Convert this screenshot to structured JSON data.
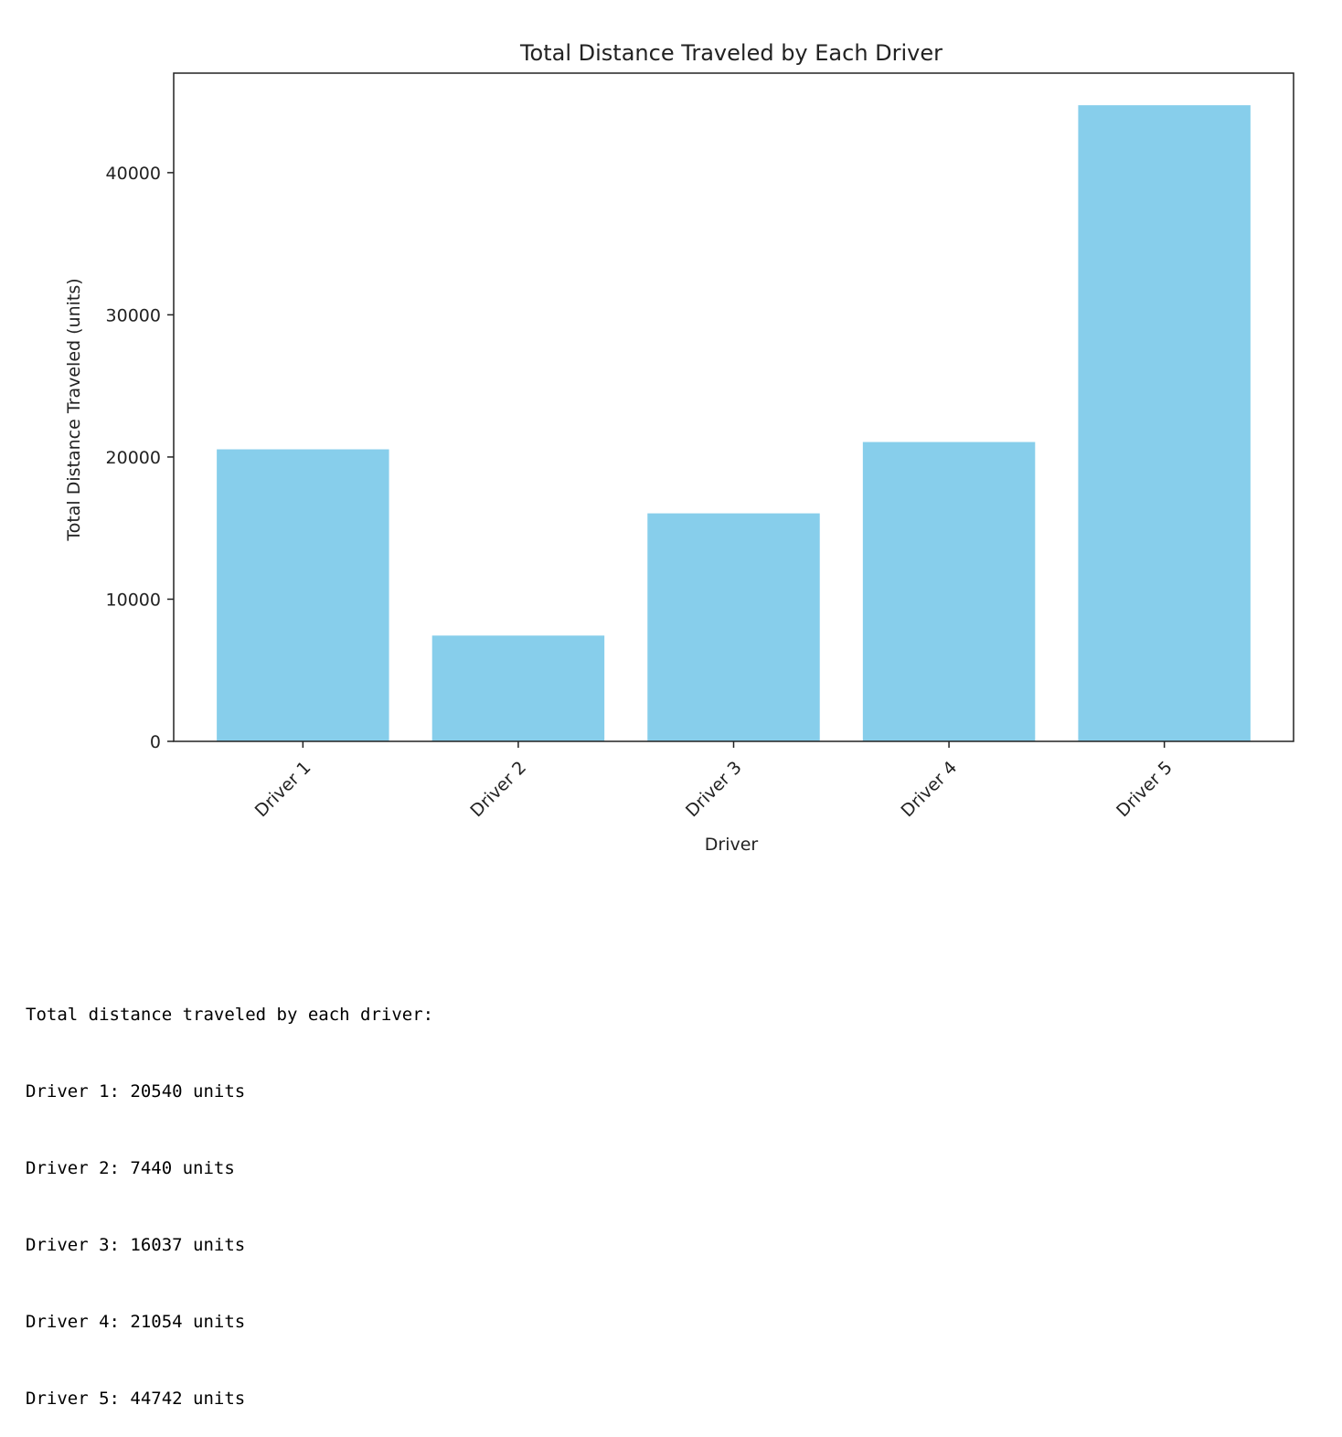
{
  "chart_data": {
    "type": "bar",
    "title": "Total Distance Traveled by Each Driver",
    "xlabel": "Driver",
    "ylabel": "Total Distance Traveled (units)",
    "categories": [
      "Driver 1",
      "Driver 2",
      "Driver 3",
      "Driver 4",
      "Driver 5"
    ],
    "values": [
      20540,
      7440,
      16037,
      21054,
      44742
    ],
    "ylim": [
      0,
      47000
    ],
    "yticks": [
      0,
      10000,
      20000,
      30000,
      40000
    ],
    "ytick_labels": [
      "0",
      "10000",
      "20000",
      "30000",
      "40000"
    ],
    "xtick_rotation": 45,
    "bar_color": "#87ceeb",
    "grid": false,
    "legend": "none"
  },
  "output": {
    "header": "Total distance traveled by each driver:",
    "lines": [
      "Driver 1: 20540 units",
      "Driver 2: 7440 units",
      "Driver 3: 16037 units",
      "Driver 4: 21054 units",
      "Driver 5: 44742 units"
    ]
  }
}
